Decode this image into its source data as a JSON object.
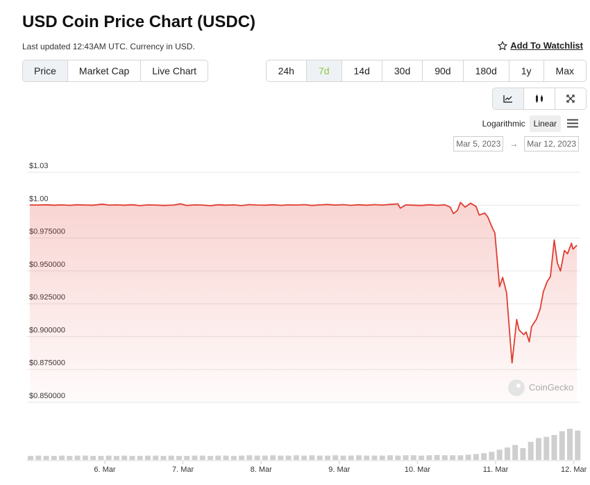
{
  "header": {
    "title": "USD Coin Price Chart (USDC)",
    "subtitle": "Last updated 12:43AM UTC. Currency in USD.",
    "watchlist": "Add To Watchlist"
  },
  "tabs": {
    "items": [
      "Price",
      "Market Cap",
      "Live Chart"
    ],
    "active": 0
  },
  "ranges": {
    "items": [
      "24h",
      "7d",
      "14d",
      "30d",
      "90d",
      "180d",
      "1y",
      "Max"
    ],
    "active": 1
  },
  "scale": {
    "items": [
      "Logarithmic",
      "Linear"
    ],
    "active": 1
  },
  "dates": {
    "from": "Mar 5, 2023",
    "arrow": "→",
    "to": "Mar 12, 2023"
  },
  "chart_data": {
    "type": "line",
    "color": "#e03c31",
    "grid": true,
    "watermark": "CoinGecko",
    "x": [
      5.04,
      5.15,
      5.25,
      5.35,
      5.45,
      5.55,
      5.65,
      5.75,
      5.85,
      5.97,
      6.05,
      6.15,
      6.25,
      6.35,
      6.45,
      6.55,
      6.65,
      6.75,
      6.88,
      6.97,
      7.05,
      7.15,
      7.25,
      7.35,
      7.45,
      7.55,
      7.65,
      7.75,
      7.85,
      7.95,
      8.05,
      8.15,
      8.25,
      8.35,
      8.45,
      8.55,
      8.65,
      8.75,
      8.85,
      8.95,
      9.05,
      9.15,
      9.25,
      9.35,
      9.45,
      9.55,
      9.65,
      9.75,
      9.78,
      9.85,
      9.95,
      10.05,
      10.15,
      10.25,
      10.35,
      10.42,
      10.46,
      10.51,
      10.55,
      10.61,
      10.68,
      10.75,
      10.79,
      10.86,
      10.9,
      10.96,
      10.99,
      11.05,
      11.09,
      11.14,
      11.19,
      11.21,
      11.27,
      11.3,
      11.36,
      11.39,
      11.43,
      11.46,
      11.52,
      11.57,
      11.61,
      11.66,
      11.7,
      11.75,
      11.79,
      11.83,
      11.88,
      11.92,
      11.97,
      11.99,
      12.04
    ],
    "values": [
      1.0002,
      1.0001,
      1.0003,
      1.0,
      1.0002,
      0.9999,
      1.0003,
      1.0001,
      1.0,
      1.0008,
      1.0001,
      1.0002,
      1.0,
      1.0003,
      0.9997,
      1.0002,
      1.0001,
      0.9998,
      1.0001,
      1.001,
      0.9998,
      1.0002,
      1.0001,
      0.9996,
      1.0003,
      1.0,
      1.0002,
      0.9997,
      1.0004,
      1.0001,
      1.0,
      1.0003,
      0.9999,
      1.0002,
      1.0001,
      1.0004,
      0.9998,
      1.0002,
      1.0005,
      1.0001,
      1.0004,
      0.9999,
      1.0003,
      1.0,
      1.0004,
      1.0001,
      1.0006,
      1.001,
      0.9977,
      1.0002,
      1.0,
      0.9998,
      1.0003,
      0.9999,
      1.0002,
      0.9985,
      0.9936,
      0.996,
      1.0021,
      0.9985,
      1.0015,
      0.999,
      0.9925,
      0.994,
      0.991,
      0.9825,
      0.979,
      0.938,
      0.945,
      0.9335,
      0.895,
      0.88,
      0.913,
      0.905,
      0.9015,
      0.9035,
      0.896,
      0.9075,
      0.913,
      0.921,
      0.934,
      0.942,
      0.9455,
      0.9735,
      0.956,
      0.95,
      0.9655,
      0.963,
      0.971,
      0.9665,
      0.9695
    ],
    "xlim": [
      5,
      12.1
    ],
    "xticks": [
      {
        "value": 6,
        "label": "6. Mar"
      },
      {
        "value": 7,
        "label": "7. Mar"
      },
      {
        "value": 8,
        "label": "8. Mar"
      },
      {
        "value": 9,
        "label": "9. Mar"
      },
      {
        "value": 10,
        "label": "10. Mar"
      },
      {
        "value": 11,
        "label": "11. Mar"
      },
      {
        "value": 12,
        "label": "12. Mar"
      }
    ],
    "ylim": [
      0.85,
      1.025
    ],
    "yticks": [
      {
        "value": 0.85,
        "label": "$0.850000"
      },
      {
        "value": 0.875,
        "label": "$0.875000"
      },
      {
        "value": 0.9,
        "label": "$0.900000"
      },
      {
        "value": 0.925,
        "label": "$0.925000"
      },
      {
        "value": 0.95,
        "label": "$0.950000"
      },
      {
        "value": 0.975,
        "label": "$0.975000"
      },
      {
        "value": 1,
        "label": "$1.00"
      },
      {
        "value": 1.025,
        "label": "$1.03"
      }
    ],
    "volume": {
      "color": "#cfcfcf",
      "x": [
        5.05,
        5.15,
        5.25,
        5.35,
        5.45,
        5.55,
        5.65,
        5.75,
        5.85,
        5.95,
        6.05,
        6.15,
        6.25,
        6.35,
        6.45,
        6.55,
        6.65,
        6.75,
        6.85,
        6.95,
        7.05,
        7.15,
        7.25,
        7.35,
        7.45,
        7.55,
        7.65,
        7.75,
        7.85,
        7.95,
        8.05,
        8.15,
        8.25,
        8.35,
        8.45,
        8.55,
        8.65,
        8.75,
        8.85,
        8.95,
        9.05,
        9.15,
        9.25,
        9.35,
        9.45,
        9.55,
        9.65,
        9.75,
        9.85,
        9.95,
        10.05,
        10.15,
        10.25,
        10.35,
        10.45,
        10.55,
        10.65,
        10.75,
        10.85,
        10.95,
        11.05,
        11.15,
        11.25,
        11.35,
        11.45,
        11.55,
        11.65,
        11.75,
        11.85,
        11.95,
        12.05
      ],
      "values": [
        13,
        14,
        13,
        13,
        14,
        13,
        14,
        14,
        13,
        13,
        14,
        13,
        14,
        13,
        13,
        14,
        14,
        13,
        14,
        13,
        13,
        14,
        14,
        13,
        14,
        14,
        13,
        14,
        15,
        14,
        14,
        15,
        14,
        14,
        15,
        14,
        15,
        14,
        14,
        15,
        14,
        14,
        15,
        14,
        14,
        14,
        15,
        14,
        15,
        15,
        14,
        15,
        16,
        15,
        15,
        15,
        17,
        19,
        22,
        26,
        33,
        40,
        48,
        38,
        58,
        70,
        74,
        80,
        92,
        100,
        94
      ]
    }
  }
}
